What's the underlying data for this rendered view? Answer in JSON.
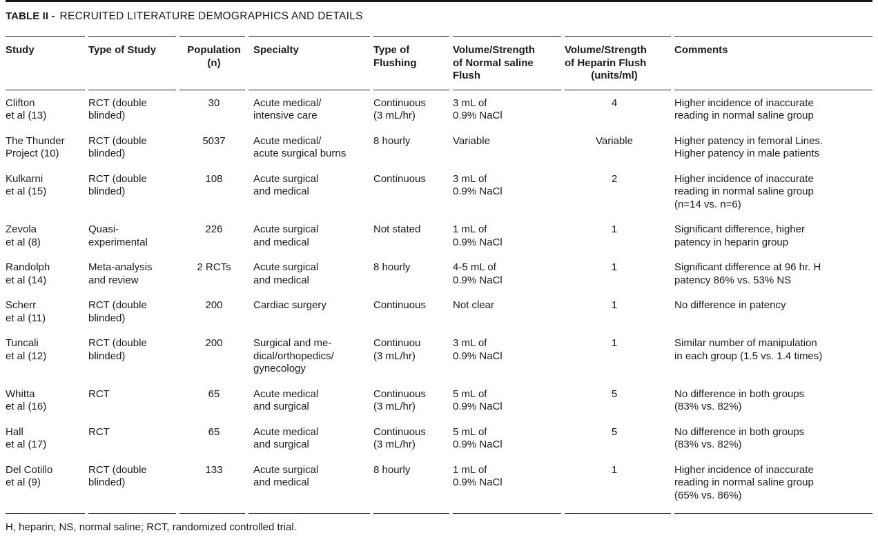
{
  "table": {
    "title_label": "TABLE II -",
    "title_text": "RECRUITED LITERATURE DEMOGRAPHICS AND DETAILS",
    "headers": [
      {
        "label": "Study"
      },
      {
        "label": "Type of Study"
      },
      {
        "label": "Population",
        "sublabel": "(n)"
      },
      {
        "label": "Specialty"
      },
      {
        "label": "Type of\nFlushing"
      },
      {
        "label": "Volume/Strength\nof Normal saline\nFlush"
      },
      {
        "label": "Volume/Strength\nof Heparin Flush",
        "sublabel": "(units/ml)"
      },
      {
        "label": "Comments"
      }
    ],
    "rows": [
      [
        "Clifton\net al (13)",
        "RCT (double\nblinded)",
        "30",
        "Acute medical/\nintensive care",
        "Continuous\n(3 mL/hr)",
        "3 mL of\n0.9% NaCl",
        "4",
        "Higher incidence of inaccurate\nreading in normal saline group"
      ],
      [
        "The Thunder\nProject (10)",
        "RCT (double\nblinded)",
        "5037",
        "Acute medical/\nacute surgical burns",
        "8 hourly",
        "Variable",
        "Variable",
        "Higher patency in femoral Lines.\nHigher patency in male patients"
      ],
      [
        "Kulkarni\net al (15)",
        "RCT (double\nblinded)",
        "108",
        "Acute surgical\nand medical",
        "Continuous",
        "3 mL of\n0.9% NaCl",
        "2",
        "Higher incidence of inaccurate\nreading in normal saline group\n(n=14 vs. n=6)"
      ],
      [
        "Zevola\net al (8)",
        "Quasi-\nexperimental",
        "226",
        "Acute surgical\nand medical",
        "Not stated",
        "1 mL of\n0.9% NaCl",
        "1",
        "Significant difference, higher\npatency in heparin group"
      ],
      [
        "Randolph\net al (14)",
        "Meta-analysis\nand review",
        "2 RCTs",
        "Acute surgical\nand medical",
        "8 hourly",
        "4-5 mL of\n0.9% NaCl",
        "1",
        "Significant difference at 96 hr. H\npatency 86% vs. 53% NS"
      ],
      [
        "Scherr\net al (11)",
        "RCT (double\nblinded)",
        "200",
        "Cardiac surgery",
        "Continuous",
        "Not clear",
        "1",
        "No difference in patency"
      ],
      [
        "Tuncali\net al (12)",
        "RCT (double\nblinded)",
        "200",
        "Surgical and me-\ndical/orthopedics/\ngynecology",
        "Continuou\n(3 mL/hr)",
        "3 mL of\n0.9% NaCl",
        "1",
        "Similar number of manipulation\nin each group (1.5 vs. 1.4 times)"
      ],
      [
        "Whitta\net al (16)",
        "RCT",
        "65",
        "Acute medical\nand surgical",
        "Continuous\n(3 mL/hr)",
        "5 mL of\n0.9% NaCl",
        "5",
        "No difference in both groups\n(83% vs. 82%)"
      ],
      [
        "Hall\net al (17)",
        "RCT",
        "65",
        "Acute medical\nand surgical",
        "Continuous\n(3 mL/hr)",
        "5 mL of\n0.9% NaCl",
        "5",
        "No difference in both groups\n(83% vs. 82%)"
      ],
      [
        "Del Cotillo\net al (9)",
        "RCT (double\nblinded)",
        "133",
        "Acute surgical\nand medical",
        "8 hourly",
        "1 mL of\n0.9% NaCl",
        "1",
        "Higher incidence of inaccurate\nreading in normal saline group\n(65% vs. 86%)"
      ]
    ],
    "footnote": "H, heparin; NS, normal saline; RCT, randomized controlled trial.",
    "colors": {
      "text": "#1b1b1b",
      "rule": "#1c1c1c",
      "background": "#ffffff"
    }
  }
}
